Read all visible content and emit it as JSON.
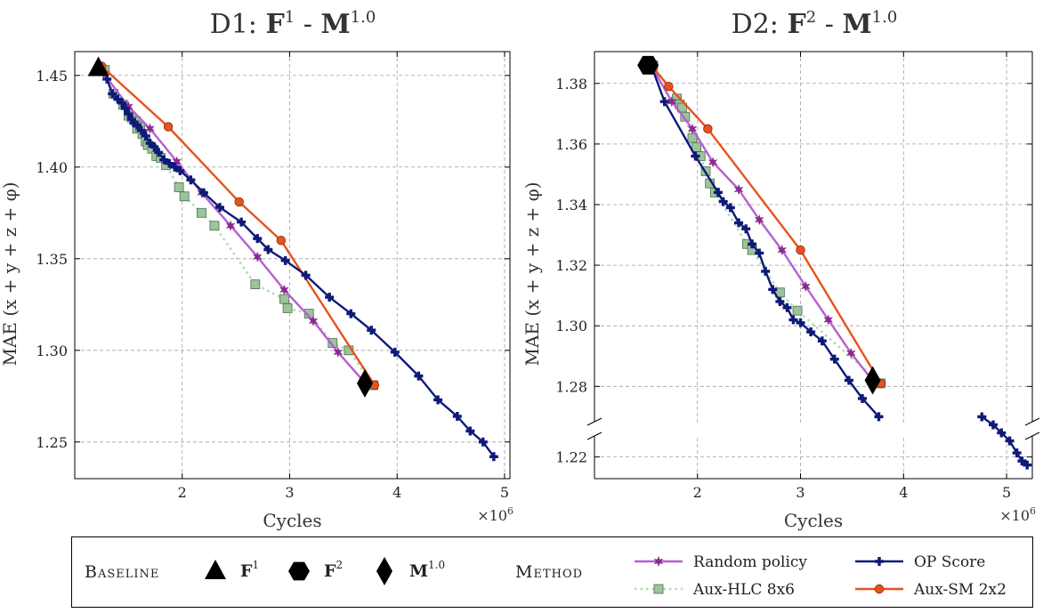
{
  "chart_data": [
    {
      "type": "line",
      "title": "D1: F1 - M1.0",
      "title_parts": {
        "prefix": "D1: ",
        "f": "F",
        "f_sup": "1",
        "dash": " - ",
        "m": "M",
        "m_sup": "1.0"
      },
      "xlabel": "Cycles",
      "ylabel": "MAE (x + y + z + φ)",
      "x_multiplier": "×10^6",
      "x_multiplier_parts": {
        "base": "×10",
        "exp": "6"
      },
      "xlim": [
        1.0,
        5.05
      ],
      "ylim": [
        1.23,
        1.463
      ],
      "xticks": [
        2,
        3,
        4,
        5
      ],
      "xtick_labels": [
        "2",
        "3",
        "4",
        "5"
      ],
      "yticks": [
        1.25,
        1.3,
        1.35,
        1.4,
        1.45
      ],
      "ytick_labels": [
        "1.25",
        "1.30",
        "1.35",
        "1.40",
        "1.45"
      ],
      "grid": true,
      "series": [
        {
          "name": "Random policy",
          "key": "random",
          "x": [
            1.27,
            1.5,
            1.7,
            1.95,
            2.18,
            2.45,
            2.7,
            2.95,
            3.22,
            3.45,
            3.72
          ],
          "y": [
            1.451,
            1.433,
            1.421,
            1.403,
            1.386,
            1.368,
            1.351,
            1.333,
            1.316,
            1.299,
            1.281
          ]
        },
        {
          "name": "Aux-HLC 8x6",
          "key": "hlc",
          "x": [
            1.28,
            1.36,
            1.45,
            1.5,
            1.53,
            1.57,
            1.58,
            1.61,
            1.63,
            1.66,
            1.68,
            1.72,
            1.76,
            1.8,
            1.85,
            1.97,
            2.02,
            2.18,
            2.3,
            2.68,
            2.95,
            2.98,
            3.18,
            3.4,
            3.55,
            3.78
          ],
          "y": [
            1.453,
            1.44,
            1.434,
            1.428,
            1.427,
            1.425,
            1.421,
            1.422,
            1.418,
            1.414,
            1.412,
            1.41,
            1.406,
            1.405,
            1.401,
            1.389,
            1.384,
            1.375,
            1.368,
            1.336,
            1.328,
            1.323,
            1.32,
            1.304,
            1.3,
            1.281
          ]
        },
        {
          "name": "Aux-SM 2x2",
          "key": "sm",
          "x": [
            1.25,
            1.87,
            2.53,
            2.92,
            3.79
          ],
          "y": [
            1.455,
            1.422,
            1.381,
            1.36,
            1.281
          ]
        },
        {
          "name": "OP Score",
          "key": "op",
          "x": [
            1.3,
            1.35,
            1.4,
            1.44,
            1.47,
            1.5,
            1.53,
            1.55,
            1.58,
            1.62,
            1.66,
            1.7,
            1.74,
            1.78,
            1.83,
            1.88,
            1.93,
            1.98,
            2.08,
            2.2,
            2.35,
            2.55,
            2.7,
            2.8,
            2.96,
            3.15,
            3.37,
            3.57,
            3.76,
            3.98,
            4.2,
            4.38,
            4.56,
            4.68,
            4.8,
            4.9
          ],
          "y": [
            1.448,
            1.44,
            1.437,
            1.435,
            1.432,
            1.429,
            1.426,
            1.424,
            1.423,
            1.42,
            1.417,
            1.413,
            1.411,
            1.408,
            1.404,
            1.402,
            1.4,
            1.398,
            1.393,
            1.386,
            1.378,
            1.37,
            1.361,
            1.355,
            1.349,
            1.341,
            1.329,
            1.32,
            1.311,
            1.299,
            1.286,
            1.273,
            1.264,
            1.256,
            1.25,
            1.242
          ]
        }
      ],
      "baselines": [
        {
          "label": "F1",
          "marker": "triangle",
          "x": 1.22,
          "y": 1.454
        },
        {
          "label": "M1.0",
          "marker": "diamond",
          "x": 3.7,
          "y": 1.282
        }
      ]
    },
    {
      "type": "line",
      "title": "D2: F2 - M1.0",
      "title_parts": {
        "prefix": "D2: ",
        "f": "F",
        "f_sup": "2",
        "dash": " - ",
        "m": "M",
        "m_sup": "1.0"
      },
      "xlabel": "Cycles",
      "ylabel": "MAE (x + y + z + φ)",
      "x_multiplier": "×10^6",
      "x_multiplier_parts": {
        "base": "×10",
        "exp": "6"
      },
      "xlim": [
        1.0,
        5.25
      ],
      "ylim": [
        1.2146,
        1.3905
      ],
      "y_axis_break": [
        1.227,
        1.266
      ],
      "xticks": [
        2,
        3,
        4,
        5
      ],
      "xtick_labels": [
        "2",
        "3",
        "4",
        "5"
      ],
      "yticks": [
        1.22,
        1.28,
        1.3,
        1.32,
        1.34,
        1.36,
        1.38
      ],
      "ytick_labels": [
        "1.22",
        "1.28",
        "1.30",
        "1.32",
        "1.34",
        "1.36",
        "1.38"
      ],
      "grid": true,
      "series": [
        {
          "name": "Random policy",
          "key": "random",
          "x": [
            1.55,
            1.75,
            1.95,
            2.15,
            2.4,
            2.6,
            2.82,
            3.05,
            3.27,
            3.49,
            3.72
          ],
          "y": [
            1.386,
            1.374,
            1.365,
            1.354,
            1.345,
            1.335,
            1.325,
            1.313,
            1.302,
            1.291,
            1.281
          ]
        },
        {
          "name": "Aux-HLC 8x6",
          "key": "hlc",
          "x": [
            1.57,
            1.8,
            1.83,
            1.85,
            1.88,
            1.95,
            1.99,
            2.03,
            2.08,
            2.12,
            2.17,
            2.48,
            2.53,
            2.8,
            2.97,
            3.78
          ],
          "y": [
            1.386,
            1.375,
            1.373,
            1.372,
            1.369,
            1.362,
            1.359,
            1.356,
            1.351,
            1.347,
            1.344,
            1.327,
            1.325,
            1.311,
            1.305,
            1.281
          ]
        },
        {
          "name": "Aux-SM 2x2",
          "key": "sm",
          "x": [
            1.55,
            1.72,
            2.1,
            3.0,
            3.78
          ],
          "y": [
            1.386,
            1.379,
            1.365,
            1.325,
            1.281
          ]
        },
        {
          "name": "OP Score",
          "key": "op",
          "x": [
            1.55,
            1.68,
            1.98,
            2.2,
            2.25,
            2.32,
            2.4,
            2.47,
            2.53,
            2.6,
            2.66,
            2.73,
            2.8,
            2.87,
            2.93,
            3.0,
            3.1,
            3.21,
            3.33,
            3.47,
            3.6,
            3.76,
            4.76,
            4.87,
            4.95,
            5.03,
            5.1,
            5.15,
            5.2
          ],
          "y": [
            1.386,
            1.374,
            1.356,
            1.344,
            1.341,
            1.339,
            1.334,
            1.332,
            1.327,
            1.324,
            1.318,
            1.312,
            1.308,
            1.306,
            1.302,
            1.301,
            1.298,
            1.295,
            1.289,
            1.282,
            1.276,
            1.27,
            1.23,
            1.228,
            1.226,
            1.224,
            1.221,
            1.219,
            1.218
          ]
        }
      ],
      "baselines": [
        {
          "label": "F2",
          "marker": "hexagon",
          "x": 1.52,
          "y": 1.386
        },
        {
          "label": "M1.0",
          "marker": "diamond",
          "x": 3.7,
          "y": 1.282
        }
      ]
    }
  ],
  "legend": {
    "baseline_heading": "Baseline",
    "method_heading": "Method",
    "baseline_items": [
      {
        "marker": "triangle",
        "symbol": "F",
        "sup": "1"
      },
      {
        "marker": "hexagon",
        "symbol": "F",
        "sup": "2"
      },
      {
        "marker": "diamond",
        "symbol": "M",
        "sup": "1.0"
      }
    ],
    "method_items": [
      {
        "key": "random",
        "label": "Random policy"
      },
      {
        "key": "hlc",
        "label": "Aux-HLC 8x6"
      },
      {
        "key": "op",
        "label": "OP Score"
      },
      {
        "key": "sm",
        "label": "Aux-SM 2x2"
      }
    ]
  },
  "colors": {
    "random": "#b55fd0",
    "random_marker": "#8a2a8e",
    "hlc_line": "#b5d7b5",
    "hlc_marker": "#9cc49a",
    "sm": "#e8521e",
    "op": "#0d1a78",
    "grid": "#a0a0a0"
  }
}
